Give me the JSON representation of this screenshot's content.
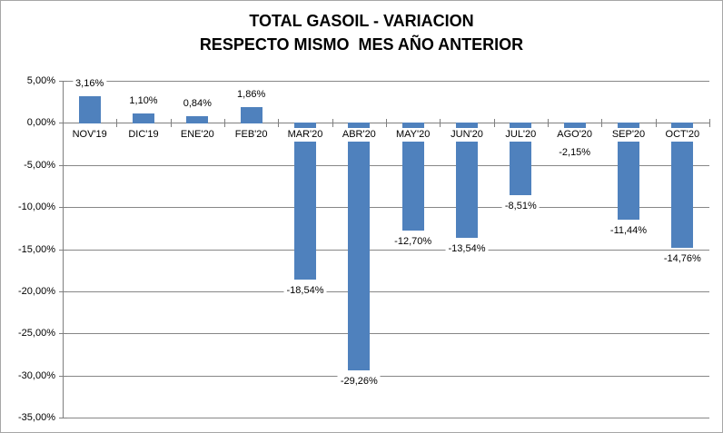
{
  "chart_data": {
    "type": "bar",
    "title": "TOTAL GASOIL - VARIACION RESPECTO MISMO MES AÑO ANTERIOR",
    "title_lines": [
      "TOTAL GASOIL - VARIACION",
      "RESPECTO MISMO  MES AÑO ANTERIOR"
    ],
    "categories": [
      "NOV'19",
      "DIC'19",
      "ENE'20",
      "FEB'20",
      "MAR'20",
      "ABR'20",
      "MAY'20",
      "JUN'20",
      "JUL'20",
      "AGO'20",
      "SEP'20",
      "OCT'20"
    ],
    "values": [
      3.16,
      1.1,
      0.84,
      1.86,
      -18.54,
      -29.26,
      -12.7,
      -13.54,
      -8.51,
      -2.15,
      -11.44,
      -14.76
    ],
    "data_labels": [
      "3,16%",
      "1,10%",
      "0,84%",
      "1,86%",
      "-18,54%",
      "-29,26%",
      "-12,70%",
      "-13,54%",
      "-8,51%",
      "-2,15%",
      "-11,44%",
      "-14,76%"
    ],
    "y_axis": {
      "min": -35,
      "max": 5,
      "step": 5,
      "tick_labels": [
        "5,00%",
        "0,00%",
        "-5,00%",
        "-10,00%",
        "-15,00%",
        "-20,00%",
        "-25,00%",
        "-30,00%",
        "-35,00%"
      ]
    },
    "xlabel": "",
    "ylabel": "",
    "grid": true,
    "legend": "none",
    "colors": {
      "bar": "#4F81BD",
      "gridline": "#878787",
      "axis": "#7F7F7F",
      "text": "#000000",
      "background": "#FFFFFF",
      "border": "#A6A6A6"
    }
  }
}
